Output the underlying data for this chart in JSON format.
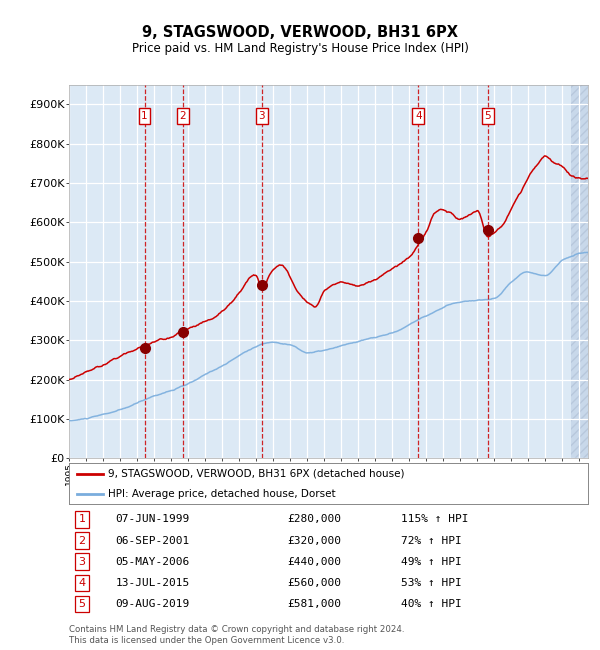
{
  "title": "9, STAGSWOOD, VERWOOD, BH31 6PX",
  "subtitle": "Price paid vs. HM Land Registry's House Price Index (HPI)",
  "background_color": "#dce9f5",
  "grid_color": "#ffffff",
  "red_line_color": "#cc0000",
  "blue_line_color": "#7aaddd",
  "sale_marker_color": "#880000",
  "vline_color": "#cc0000",
  "yticks": [
    0,
    100000,
    200000,
    300000,
    400000,
    500000,
    600000,
    700000,
    800000,
    900000
  ],
  "ytick_labels": [
    "£0",
    "£100K",
    "£200K",
    "£300K",
    "£400K",
    "£500K",
    "£600K",
    "£700K",
    "£800K",
    "£900K"
  ],
  "xmin": 1995.0,
  "xmax": 2025.5,
  "ymin": 0,
  "ymax": 950000,
  "sales": [
    {
      "num": 1,
      "date_str": "07-JUN-1999",
      "year": 1999.44,
      "price": 280000,
      "pct": "115%",
      "dir": "↑"
    },
    {
      "num": 2,
      "date_str": "06-SEP-2001",
      "year": 2001.68,
      "price": 320000,
      "pct": "72%",
      "dir": "↑"
    },
    {
      "num": 3,
      "date_str": "05-MAY-2006",
      "year": 2006.34,
      "price": 440000,
      "pct": "49%",
      "dir": "↑"
    },
    {
      "num": 4,
      "date_str": "13-JUL-2015",
      "year": 2015.53,
      "price": 560000,
      "pct": "53%",
      "dir": "↑"
    },
    {
      "num": 5,
      "date_str": "09-AUG-2019",
      "year": 2019.61,
      "price": 581000,
      "pct": "40%",
      "dir": "↑"
    }
  ],
  "legend_red_label": "9, STAGSWOOD, VERWOOD, BH31 6PX (detached house)",
  "legend_blue_label": "HPI: Average price, detached house, Dorset",
  "footer": "Contains HM Land Registry data © Crown copyright and database right 2024.\nThis data is licensed under the Open Government Licence v3.0."
}
